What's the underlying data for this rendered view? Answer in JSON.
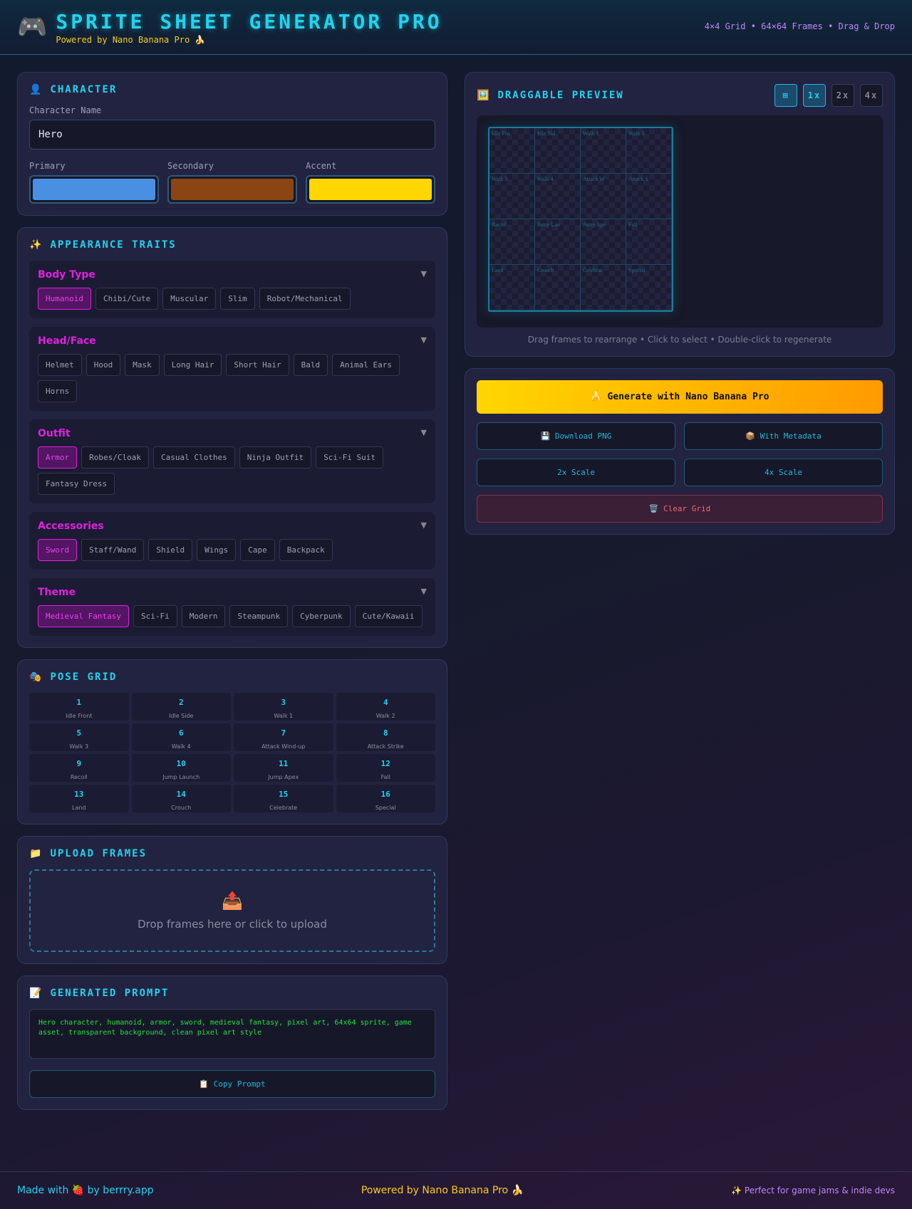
{
  "header": {
    "icon": "gamepad-icon",
    "title": "SPRITE SHEET GENERATOR PRO",
    "subtitle": "Powered by Nano Banana Pro 🍌",
    "info": "4×4 Grid • 64×64 Frames • Drag & Drop"
  },
  "character": {
    "icon": "👤",
    "title": "CHARACTER",
    "name_label": "Character Name",
    "name_value": "Hero",
    "colors": [
      {
        "label": "Primary",
        "value": "#4a90e2"
      },
      {
        "label": "Secondary",
        "value": "#8b4513"
      },
      {
        "label": "Accent",
        "value": "#ffd700"
      }
    ]
  },
  "appearance": {
    "icon": "✨",
    "title": "APPEARANCE TRAITS",
    "groups": [
      {
        "title": "Body Type",
        "options": [
          "Humanoid",
          "Chibi/Cute",
          "Muscular",
          "Slim",
          "Robot/Mechanical"
        ],
        "selected": "Humanoid"
      },
      {
        "title": "Head/Face",
        "options": [
          "Helmet",
          "Hood",
          "Mask",
          "Long Hair",
          "Short Hair",
          "Bald",
          "Animal Ears",
          "Horns"
        ],
        "selected": null
      },
      {
        "title": "Outfit",
        "options": [
          "Armor",
          "Robes/Cloak",
          "Casual Clothes",
          "Ninja Outfit",
          "Sci-Fi Suit",
          "Fantasy Dress"
        ],
        "selected": "Armor"
      },
      {
        "title": "Accessories",
        "options": [
          "Sword",
          "Staff/Wand",
          "Shield",
          "Wings",
          "Cape",
          "Backpack"
        ],
        "selected": "Sword"
      },
      {
        "title": "Theme",
        "options": [
          "Medieval Fantasy",
          "Sci-Fi",
          "Modern",
          "Steampunk",
          "Cyberpunk",
          "Cute/Kawaii"
        ],
        "selected": "Medieval Fantasy"
      }
    ]
  },
  "pose": {
    "icon": "🎭",
    "title": "POSE GRID",
    "poses": [
      [
        "1",
        "Idle Front"
      ],
      [
        "2",
        "Idle Side"
      ],
      [
        "3",
        "Walk 1"
      ],
      [
        "4",
        "Walk 2"
      ],
      [
        "5",
        "Walk 3"
      ],
      [
        "6",
        "Walk 4"
      ],
      [
        "7",
        "Attack Wind-up"
      ],
      [
        "8",
        "Attack Strike"
      ],
      [
        "9",
        "Recoil"
      ],
      [
        "10",
        "Jump Launch"
      ],
      [
        "11",
        "Jump Apex"
      ],
      [
        "12",
        "Fall"
      ],
      [
        "13",
        "Land"
      ],
      [
        "14",
        "Crouch"
      ],
      [
        "15",
        "Celebrate"
      ],
      [
        "16",
        "Special"
      ]
    ]
  },
  "upload": {
    "icon": "📁",
    "title": "UPLOAD FRAMES",
    "drop_icon": "📤",
    "drop_text": "Drop frames here or click to upload"
  },
  "prompt": {
    "icon": "📝",
    "title": "GENERATED PROMPT",
    "text": "Hero character, humanoid, armor, sword, medieval fantasy, pixel art, 64x64 sprite, game asset, transparent background, clean pixel art style",
    "copy_label": "📋 Copy Prompt"
  },
  "preview": {
    "icon": "🖼️",
    "title": "DRAGGABLE PREVIEW",
    "zoom": [
      {
        "label": "⊞",
        "active": true
      },
      {
        "label": "1x",
        "active": true
      },
      {
        "label": "2x",
        "active": false
      },
      {
        "label": "4x",
        "active": false
      }
    ],
    "frames": [
      "Idle Fro",
      "Idle Sid",
      "Walk 1",
      "Walk 2",
      "Walk 3",
      "Walk 4",
      "Attack W",
      "Attack S",
      "Recoil",
      "Jump Lau",
      "Jump Ape",
      "Fall",
      "Land",
      "Crouch",
      "Celebrat",
      "Special"
    ],
    "hint": "Drag frames to rearrange • Click to select • Double-click to regenerate"
  },
  "actions": {
    "generate": "🍌 Generate with Nano Banana Pro",
    "download": "💾 Download PNG",
    "metadata": "📦 With Metadata",
    "scale2": "2x Scale",
    "scale4": "4x Scale",
    "clear": "🗑️ Clear Grid"
  },
  "footer": {
    "left": "Made with 🍓 by berrry.app",
    "center": "Powered by Nano Banana Pro 🍌",
    "right": "✨ Perfect for game jams & indie devs"
  }
}
